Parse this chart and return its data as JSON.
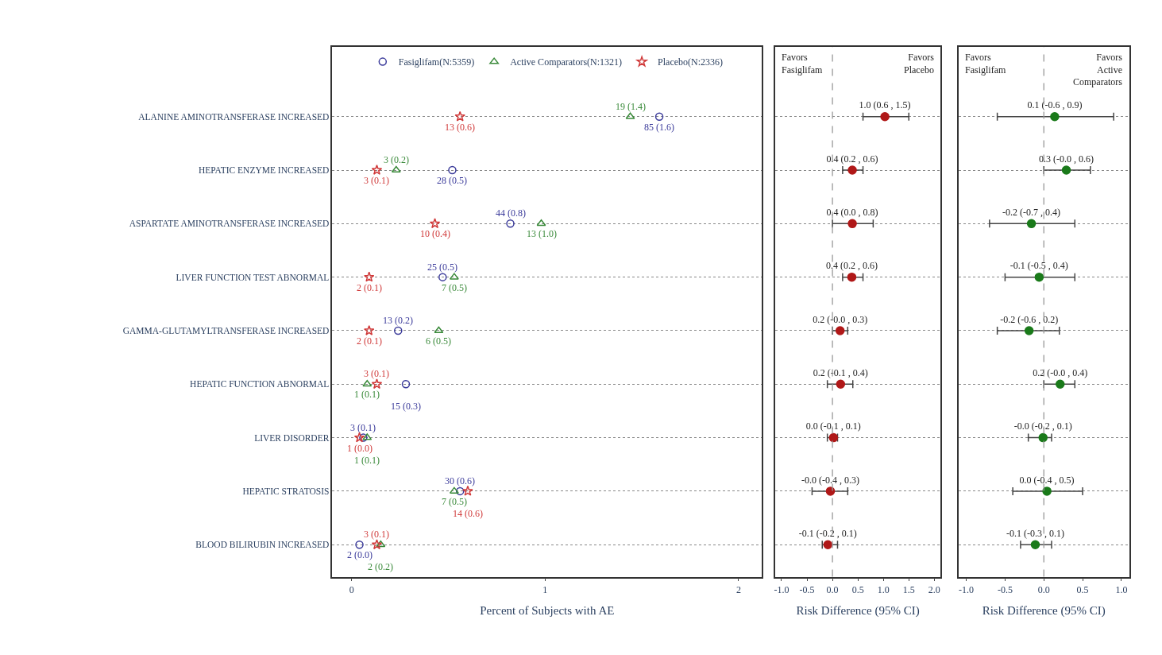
{
  "chart_data": [
    {
      "type": "scatter",
      "orientation": "horizontal",
      "xlabel": "Percent of Subjects with AE",
      "categories": [
        "ALANINE AMINOTRANSFERASE INCREASED",
        "HEPATIC ENZYME INCREASED",
        "ASPARTATE AMINOTRANSFERASE INCREASED",
        "LIVER FUNCTION TEST ABNORMAL",
        "GAMMA-GLUTAMYLTRANSFERASE INCREASED",
        "HEPATIC FUNCTION ABNORMAL",
        "LIVER DISORDER",
        "HEPATIC STRATOSIS",
        "BLOOD BILIRUBIN INCREASED"
      ],
      "xlim": [
        -0.1,
        2.12
      ],
      "xticks": [
        0,
        1,
        2
      ],
      "grid": "y",
      "legend": "top",
      "series": [
        {
          "name": "Fasiglifam(N:5359)",
          "color": "#3a3a9a",
          "marker": "circle",
          "values": [
            1.59,
            0.52,
            0.82,
            0.47,
            0.24,
            0.28,
            0.06,
            0.56,
            0.04
          ],
          "value_labels": [
            "85 (1.6)",
            "28 (0.5)",
            "44 (0.8)",
            "25 (0.5)",
            "13 (0.2)",
            "15 (0.3)",
            "3 (0.1)",
            "30 (0.6)",
            "2 (0.0)"
          ]
        },
        {
          "name": "Active Comparators(N:1321)",
          "color": "#3a8a3a",
          "marker": "triangle",
          "values": [
            1.44,
            0.23,
            0.98,
            0.53,
            0.45,
            0.08,
            0.08,
            0.53,
            0.15
          ],
          "value_labels": [
            "19 (1.4)",
            "3 (0.2)",
            "13 (1.0)",
            "7 (0.5)",
            "6 (0.5)",
            "1 (0.1)",
            "1 (0.1)",
            "7 (0.5)",
            "2 (0.2)"
          ]
        },
        {
          "name": "Placebo(N:2336)",
          "color": "#d03a3a",
          "marker": "star",
          "values": [
            0.56,
            0.13,
            0.43,
            0.09,
            0.09,
            0.13,
            0.04,
            0.6,
            0.13
          ],
          "value_labels": [
            "13 (0.6)",
            "3 (0.1)",
            "10 (0.4)",
            "2 (0.1)",
            "2 (0.1)",
            "3 (0.1)",
            "1 (0.0)",
            "14 (0.6)",
            "3 (0.1)"
          ]
        }
      ]
    },
    {
      "type": "scatter",
      "xlabel": "Risk Difference (95% CI)",
      "tick_labels": "x",
      "categories": [
        "ALANINE AMINOTRANSFERASE INCREASED",
        "HEPATIC ENZYME INCREASED",
        "ASPARTATE AMINOTRANSFERASE INCREASED",
        "LIVER FUNCTION TEST ABNORMAL",
        "GAMMA-GLUTAMYLTRANSFERASE INCREASED",
        "HEPATIC FUNCTION ABNORMAL",
        "LIVER DISORDER",
        "HEPATIC STRATOSIS",
        "BLOOD BILIRUBIN INCREASED"
      ],
      "xlim": [
        -1.12,
        2.12
      ],
      "xticks": [
        {
          "value": -1,
          "label": "-1.0"
        },
        {
          "value": -0.5,
          "label": "-0.5"
        },
        {
          "value": 0,
          "label": "0.0"
        },
        {
          "value": 0.5,
          "label": "0.5"
        },
        {
          "value": 1,
          "label": "1.0"
        },
        {
          "value": 1.5,
          "label": "1.5"
        },
        {
          "value": 2,
          "label": "2.0"
        }
      ],
      "grid": "y",
      "orientation": "horizontal",
      "annotations": [
        "Favors\nFasiglifam",
        "Favors\nPlacebo"
      ],
      "ref_lines": [
        {
          "axis": "x",
          "value": 0,
          "color": "#999999",
          "line_style": "dashed"
        }
      ],
      "series": [
        {
          "color": "#b01818",
          "marker": "circle",
          "values": [
            1.03,
            0.39,
            0.39,
            0.38,
            0.15,
            0.16,
            0.02,
            -0.04,
            -0.09
          ],
          "errors": [
            [
              0.6,
              1.5
            ],
            [
              0.2,
              0.6
            ],
            [
              0.0,
              0.8
            ],
            [
              0.2,
              0.6
            ],
            [
              -0.0,
              0.3
            ],
            [
              -0.1,
              0.4
            ],
            [
              -0.1,
              0.1
            ],
            [
              -0.4,
              0.3
            ],
            [
              -0.2,
              0.1
            ]
          ],
          "value_labels": [
            "1.0 (0.6 , 1.5)",
            "0.4 (0.2 , 0.6)",
            "0.4 (0.0 , 0.8)",
            "0.4 (0.2 , 0.6)",
            "0.2 (-0.0 , 0.3)",
            "0.2 (-0.1 , 0.4)",
            "0.0 (-0.1 , 0.1)",
            "-0.0 (-0.4 , 0.3)",
            "-0.1 (-0.2 , 0.1)"
          ]
        }
      ]
    },
    {
      "type": "scatter",
      "xlabel": "Risk Difference (95% CI)",
      "tick_labels": "x",
      "categories": [
        "ALANINE AMINOTRANSFERASE INCREASED",
        "HEPATIC ENZYME INCREASED",
        "ASPARTATE AMINOTRANSFERASE INCREASED",
        "LIVER FUNCTION TEST ABNORMAL",
        "GAMMA-GLUTAMYLTRANSFERASE INCREASED",
        "HEPATIC FUNCTION ABNORMAL",
        "LIVER DISORDER",
        "HEPATIC STRATOSIS",
        "BLOOD BILIRUBIN INCREASED"
      ],
      "xlim": [
        -1.1,
        1.1
      ],
      "xticks": [
        {
          "value": -1,
          "label": "-1.0"
        },
        {
          "value": -0.5,
          "label": "-0.5"
        },
        {
          "value": 0,
          "label": "0.0"
        },
        {
          "value": 0.5,
          "label": "0.5"
        },
        {
          "value": 1,
          "label": "1.0"
        }
      ],
      "grid": "y",
      "orientation": "horizontal",
      "annotations": [
        "Favors\nFasiglifam",
        "Favors\nActive\nComparators"
      ],
      "ref_lines": [
        {
          "axis": "x",
          "value": 0,
          "color": "#999999",
          "line_style": "dashed"
        }
      ],
      "series": [
        {
          "color": "#1a7a1a",
          "marker": "circle",
          "values": [
            0.14,
            0.29,
            -0.16,
            -0.06,
            -0.19,
            0.21,
            -0.01,
            0.04,
            -0.11
          ],
          "errors": [
            [
              -0.6,
              0.9
            ],
            [
              -0.0,
              0.6
            ],
            [
              -0.7,
              0.4
            ],
            [
              -0.5,
              0.4
            ],
            [
              -0.6,
              0.2
            ],
            [
              -0.0,
              0.4
            ],
            [
              -0.2,
              0.1
            ],
            [
              -0.4,
              0.5
            ],
            [
              -0.3,
              0.1
            ]
          ],
          "value_labels": [
            "0.1 (-0.6 , 0.9)",
            "0.3 (-0.0 , 0.6)",
            "-0.2 (-0.7 , 0.4)",
            "-0.1 (-0.5 , 0.4)",
            "-0.2 (-0.6 , 0.2)",
            "0.2 (-0.0 , 0.4)",
            "-0.0 (-0.2 , 0.1)",
            "0.0 (-0.4 , 0.5)",
            "-0.1 (-0.3 , 0.1)"
          ]
        }
      ]
    }
  ]
}
